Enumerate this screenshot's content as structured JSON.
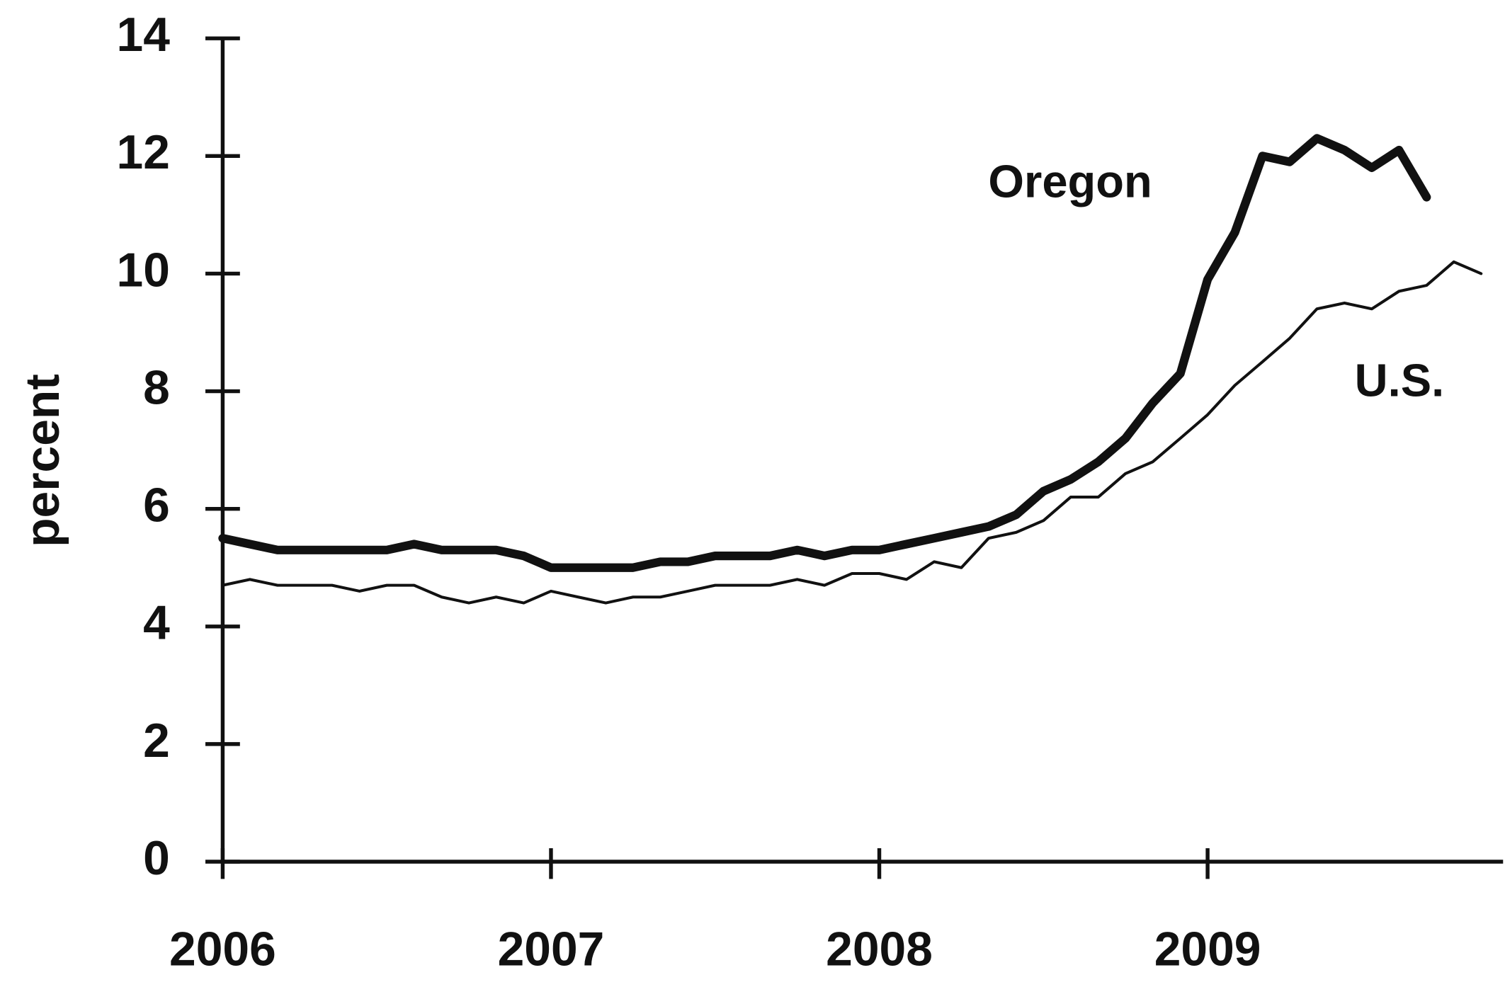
{
  "chart_data": {
    "type": "line",
    "y_label": "percent",
    "annotations": [
      "Oregon",
      "U.S."
    ],
    "x": [
      2006,
      2006.083,
      2006.167,
      2006.25,
      2006.333,
      2006.417,
      2006.5,
      2006.583,
      2006.667,
      2006.75,
      2006.833,
      2006.917,
      2007,
      2007.083,
      2007.167,
      2007.25,
      2007.333,
      2007.417,
      2007.5,
      2007.583,
      2007.667,
      2007.75,
      2007.833,
      2007.917,
      2008,
      2008.083,
      2008.167,
      2008.25,
      2008.333,
      2008.417,
      2008.5,
      2008.583,
      2008.667,
      2008.75,
      2008.833,
      2008.917,
      2009,
      2009.083,
      2009.167,
      2009.25,
      2009.333,
      2009.417,
      2009.5,
      2009.583,
      2009.667,
      2009.75,
      2009.833
    ],
    "series": [
      {
        "name": "Oregon",
        "color": "#111111",
        "width": 9,
        "values": [
          5.5,
          5.4,
          5.3,
          5.3,
          5.3,
          5.3,
          5.3,
          5.4,
          5.3,
          5.3,
          5.3,
          5.2,
          5.0,
          5.0,
          5.0,
          5.0,
          5.1,
          5.1,
          5.2,
          5.2,
          5.2,
          5.3,
          5.2,
          5.3,
          5.3,
          5.4,
          5.5,
          5.6,
          5.7,
          5.9,
          6.3,
          6.5,
          6.8,
          7.2,
          7.8,
          8.3,
          9.9,
          10.7,
          12.0,
          11.9,
          12.3,
          12.1,
          11.8,
          12.1,
          11.3,
          null,
          null
        ]
      },
      {
        "name": "U.S.",
        "color": "#111111",
        "width": 3,
        "values": [
          4.7,
          4.8,
          4.7,
          4.7,
          4.7,
          4.6,
          4.7,
          4.7,
          4.5,
          4.4,
          4.5,
          4.4,
          4.6,
          4.5,
          4.4,
          4.5,
          4.5,
          4.6,
          4.7,
          4.7,
          4.7,
          4.8,
          4.7,
          4.9,
          4.9,
          4.8,
          5.1,
          5.0,
          5.5,
          5.6,
          5.8,
          6.2,
          6.2,
          6.6,
          6.8,
          7.2,
          7.6,
          8.1,
          8.5,
          8.9,
          9.4,
          9.5,
          9.4,
          9.7,
          9.8,
          10.2,
          10.0
        ]
      }
    ],
    "xlim": [
      2006,
      2009.9
    ],
    "xticks": [
      2006,
      2007,
      2008,
      2009
    ],
    "ylim": [
      0,
      14
    ],
    "yticks": [
      0,
      2,
      4,
      6,
      8,
      10,
      12,
      14
    ],
    "grid": false,
    "legend": false
  }
}
